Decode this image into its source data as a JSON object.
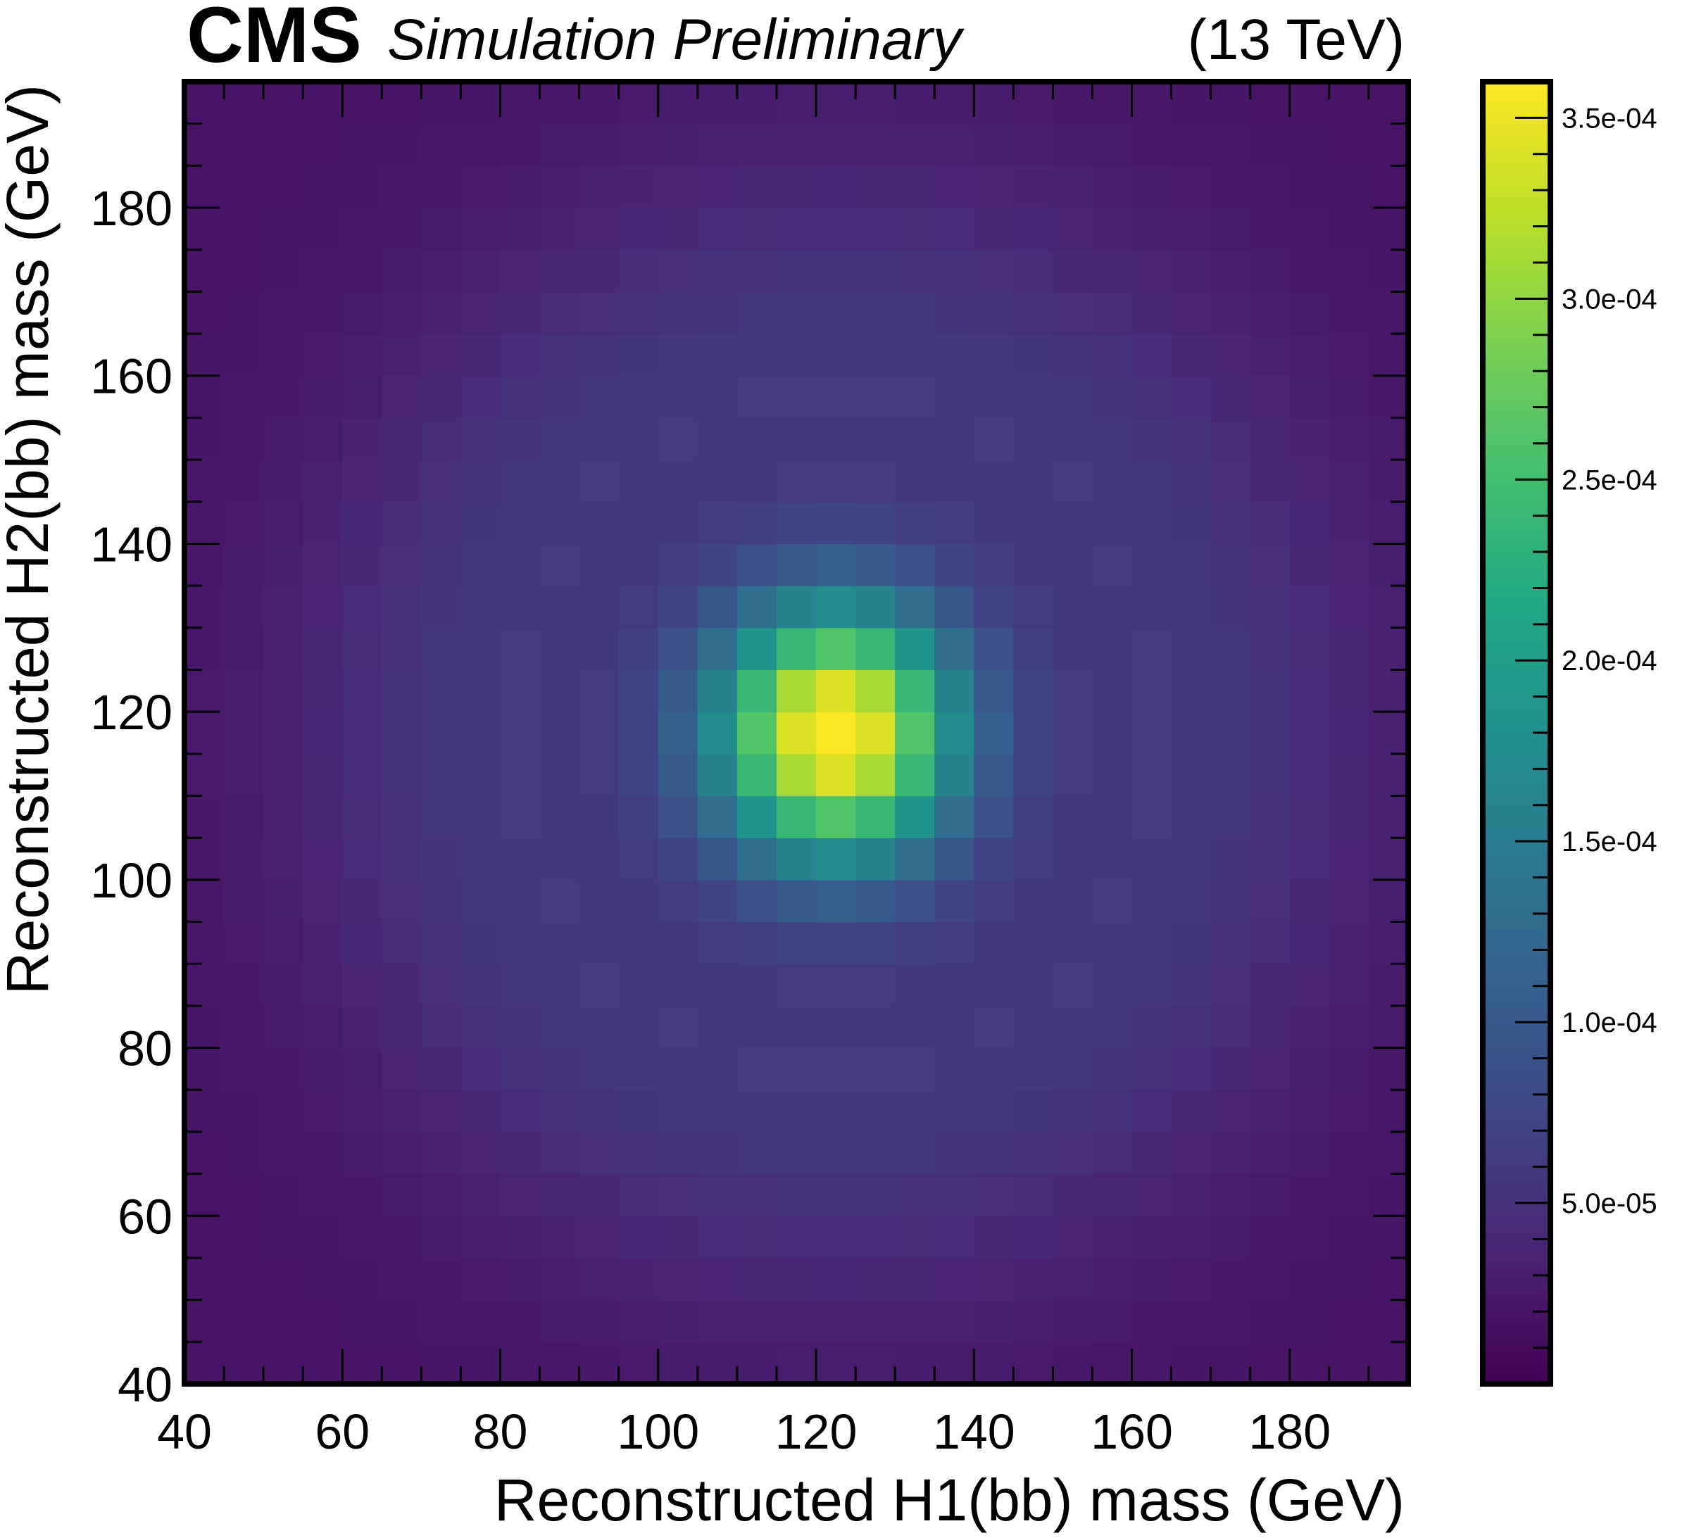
{
  "header": {
    "experiment": "CMS",
    "status": "Simulation Preliminary",
    "energy": "(13 TeV)"
  },
  "chart_data": {
    "type": "heatmap",
    "title": "",
    "xlabel": "Reconstructed H1(bb) mass (GeV)",
    "ylabel": "Reconstructed H2(bb) mass (GeV)",
    "xlim": [
      40,
      195
    ],
    "ylim": [
      40,
      195
    ],
    "xticks": [
      "40",
      "60",
      "80",
      "100",
      "120",
      "140",
      "160",
      "180"
    ],
    "yticks": [
      "40",
      "60",
      "80",
      "100",
      "120",
      "140",
      "160",
      "180"
    ],
    "bin_width": 5,
    "bin_height": 5,
    "colormap": "viridis",
    "zlim": [
      0,
      0.00036
    ],
    "colorbar_ticks": [
      {
        "value": 5e-05,
        "label": "5.0e-05"
      },
      {
        "value": 0.0001,
        "label": "1.0e-04"
      },
      {
        "value": 0.00015,
        "label": "1.5e-04"
      },
      {
        "value": 0.0002,
        "label": "2.0e-04"
      },
      {
        "value": 0.00025,
        "label": "2.5e-04"
      },
      {
        "value": 0.0003,
        "label": "3.0e-04"
      },
      {
        "value": 0.00035,
        "label": "3.5e-04"
      }
    ],
    "peak": {
      "x": 122.5,
      "y": 117.5,
      "value": 0.00035
    },
    "peak_width_x": 11,
    "peak_width_y": 11,
    "background_level": 2e-05,
    "background_ridge": 4e-05
  }
}
